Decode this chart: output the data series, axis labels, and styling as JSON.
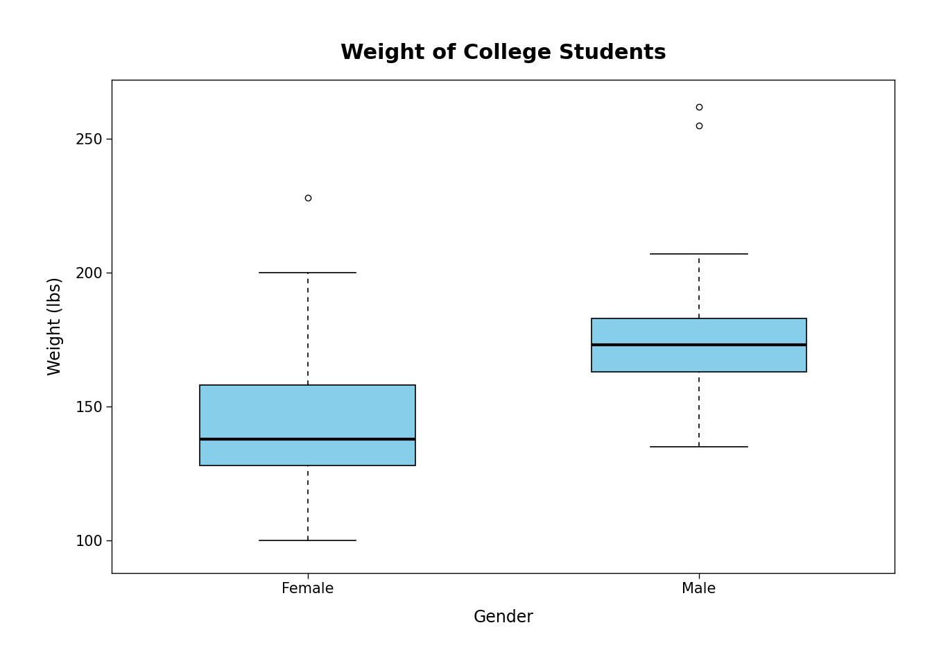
{
  "title": "Weight of College Students",
  "xlabel": "Gender",
  "ylabel": "Weight (lbs)",
  "categories": [
    "Female",
    "Male"
  ],
  "female": {
    "q1": 128,
    "median": 138,
    "q3": 158,
    "whisker_low": 100,
    "whisker_high": 200,
    "outliers": [
      228
    ]
  },
  "male": {
    "q1": 163,
    "median": 173,
    "q3": 183,
    "whisker_low": 135,
    "whisker_high": 207,
    "outliers": [
      255,
      262
    ]
  },
  "box_color": "#87CEEB",
  "box_width": 0.55,
  "ylim": [
    88,
    272
  ],
  "yticks": [
    100,
    150,
    200,
    250
  ],
  "background_color": "#ffffff",
  "title_fontsize": 22,
  "label_fontsize": 17,
  "tick_fontsize": 15
}
